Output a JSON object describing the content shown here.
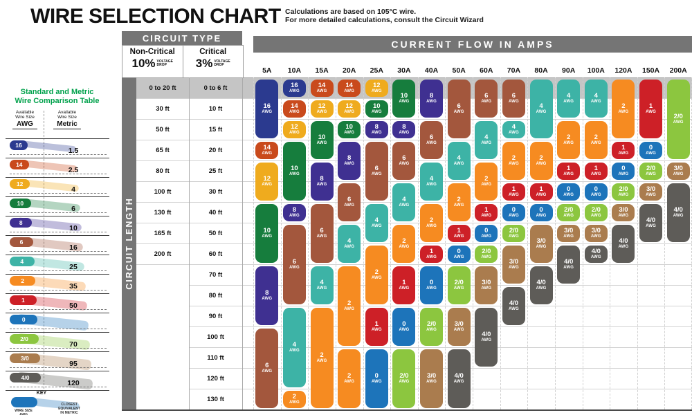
{
  "title": "WIRE SELECTION CHART",
  "note_line1": "Calculations are based on 105°C wire.",
  "note_line2": "For more detailed calculations, consult the Circuit Wizard",
  "headers": {
    "circuit_type": "CIRCUIT TYPE",
    "current_flow": "CURRENT FLOW IN AMPS",
    "circuit_length": "CIRCUIT LENGTH",
    "non_critical": "Non-Critical",
    "non_critical_pct": "10%",
    "critical": "Critical",
    "critical_pct": "3%",
    "voltage": "VOLTAGE",
    "drop": "DROP",
    "awg_suffix": "AWG"
  },
  "amps": [
    "5A",
    "10A",
    "15A",
    "20A",
    "25A",
    "30A",
    "40A",
    "50A",
    "60A",
    "70A",
    "80A",
    "90A",
    "100A",
    "120A",
    "150A",
    "200A"
  ],
  "lengths": {
    "non_critical": [
      "0 to 20 ft",
      "30 ft",
      "50 ft",
      "65 ft",
      "80 ft",
      "100 ft",
      "130 ft",
      "165 ft",
      "200 ft",
      "",
      "",
      "",
      "",
      "",
      "",
      ""
    ],
    "critical": [
      "0 to 6 ft",
      "10 ft",
      "15 ft",
      "20 ft",
      "25 ft",
      "30 ft",
      "40 ft",
      "50 ft",
      "60 ft",
      "70 ft",
      "80 ft",
      "90 ft",
      "100 ft",
      "110 ft",
      "120 ft",
      "130 ft"
    ]
  },
  "wire_colors": {
    "16": "#2b3a8f",
    "14": "#c94a1c",
    "12": "#efab1e",
    "10": "#167d3d",
    "8": "#3f3091",
    "6": "#a3573d",
    "4": "#3db3a6",
    "2": "#f68b21",
    "1": "#cd2027",
    "0": "#1d74ba",
    "2/0": "#8cc63f",
    "3/0": "#aa7c4e",
    "4/0": "#5e5c58"
  },
  "columns": [
    {
      "amp": "5A",
      "pills": [
        {
          "s": "16",
          "r": [
            1,
            3
          ]
        },
        {
          "s": "14",
          "r": [
            4,
            4
          ]
        },
        {
          "s": "12",
          "r": [
            5,
            6
          ]
        },
        {
          "s": "10",
          "r": [
            7,
            9
          ]
        },
        {
          "s": "8",
          "r": [
            10,
            12
          ]
        },
        {
          "s": "6",
          "r": [
            13,
            16
          ]
        }
      ]
    },
    {
      "amp": "10A",
      "pills": [
        {
          "s": "16",
          "r": [
            1,
            1
          ]
        },
        {
          "s": "14",
          "r": [
            2,
            2
          ]
        },
        {
          "s": "12",
          "r": [
            3,
            3
          ]
        },
        {
          "s": "10",
          "r": [
            4,
            6
          ]
        },
        {
          "s": "8",
          "r": [
            7,
            7
          ]
        },
        {
          "s": "6",
          "r": [
            8,
            11
          ]
        },
        {
          "s": "4",
          "r": [
            12,
            15
          ]
        },
        {
          "s": "2",
          "r": [
            16,
            16
          ]
        }
      ]
    },
    {
      "amp": "15A",
      "pills": [
        {
          "s": "14",
          "r": [
            1,
            1
          ]
        },
        {
          "s": "12",
          "r": [
            2,
            2
          ]
        },
        {
          "s": "10",
          "r": [
            3,
            4
          ]
        },
        {
          "s": "8",
          "r": [
            5,
            6
          ]
        },
        {
          "s": "6",
          "r": [
            7,
            9
          ]
        },
        {
          "s": "4",
          "r": [
            10,
            11
          ]
        },
        {
          "s": "2",
          "r": [
            12,
            16
          ]
        }
      ]
    },
    {
      "amp": "20A",
      "pills": [
        {
          "s": "14",
          "r": [
            1,
            1
          ]
        },
        {
          "s": "12",
          "r": [
            2,
            2
          ]
        },
        {
          "s": "10",
          "r": [
            3,
            3
          ]
        },
        {
          "s": "8",
          "r": [
            4,
            5
          ]
        },
        {
          "s": "6",
          "r": [
            6,
            7
          ]
        },
        {
          "s": "4",
          "r": [
            8,
            9
          ]
        },
        {
          "s": "2",
          "r": [
            10,
            13
          ]
        },
        {
          "s": "2",
          "r": [
            14,
            16
          ]
        }
      ]
    },
    {
      "amp": "25A",
      "pills": [
        {
          "s": "12",
          "r": [
            1,
            1
          ]
        },
        {
          "s": "10",
          "r": [
            2,
            2
          ]
        },
        {
          "s": "8",
          "r": [
            3,
            3
          ]
        },
        {
          "s": "6",
          "r": [
            4,
            6
          ]
        },
        {
          "s": "4",
          "r": [
            7,
            8
          ]
        },
        {
          "s": "2",
          "r": [
            9,
            11
          ]
        },
        {
          "s": "1",
          "r": [
            12,
            13
          ]
        },
        {
          "s": "0",
          "r": [
            14,
            16
          ]
        }
      ]
    },
    {
      "amp": "30A",
      "pills": [
        {
          "s": "10",
          "r": [
            1,
            2
          ]
        },
        {
          "s": "8",
          "r": [
            3,
            3
          ]
        },
        {
          "s": "6",
          "r": [
            4,
            5
          ]
        },
        {
          "s": "4",
          "r": [
            6,
            7
          ]
        },
        {
          "s": "2",
          "r": [
            8,
            9
          ]
        },
        {
          "s": "1",
          "r": [
            10,
            11
          ]
        },
        {
          "s": "0",
          "r": [
            12,
            13
          ]
        },
        {
          "s": "2/0",
          "r": [
            14,
            16
          ]
        }
      ]
    },
    {
      "amp": "40A",
      "pills": [
        {
          "s": "8",
          "r": [
            1,
            2
          ]
        },
        {
          "s": "6",
          "r": [
            3,
            4
          ]
        },
        {
          "s": "4",
          "r": [
            5,
            6
          ]
        },
        {
          "s": "2",
          "r": [
            7,
            8
          ]
        },
        {
          "s": "1",
          "r": [
            9,
            9
          ]
        },
        {
          "s": "0",
          "r": [
            10,
            11
          ]
        },
        {
          "s": "2/0",
          "r": [
            12,
            13
          ]
        },
        {
          "s": "3/0",
          "r": [
            14,
            16
          ]
        }
      ]
    },
    {
      "amp": "50A",
      "pills": [
        {
          "s": "6",
          "r": [
            1,
            3
          ]
        },
        {
          "s": "4",
          "r": [
            4,
            5
          ]
        },
        {
          "s": "2",
          "r": [
            6,
            7
          ]
        },
        {
          "s": "1",
          "r": [
            8,
            8
          ]
        },
        {
          "s": "0",
          "r": [
            9,
            9
          ]
        },
        {
          "s": "2/0",
          "r": [
            10,
            11
          ]
        },
        {
          "s": "3/0",
          "r": [
            12,
            13
          ]
        },
        {
          "s": "4/0",
          "r": [
            14,
            16
          ]
        }
      ]
    },
    {
      "amp": "60A",
      "pills": [
        {
          "s": "6",
          "r": [
            1,
            2
          ]
        },
        {
          "s": "4",
          "r": [
            3,
            4
          ]
        },
        {
          "s": "2",
          "r": [
            5,
            6
          ]
        },
        {
          "s": "1",
          "r": [
            7,
            7
          ]
        },
        {
          "s": "0",
          "r": [
            8,
            8
          ]
        },
        {
          "s": "2/0",
          "r": [
            9,
            9
          ]
        },
        {
          "s": "3/0",
          "r": [
            10,
            11
          ]
        },
        {
          "s": "4/0",
          "r": [
            12,
            14
          ]
        }
      ]
    },
    {
      "amp": "70A",
      "pills": [
        {
          "s": "6",
          "r": [
            1,
            2
          ]
        },
        {
          "s": "4",
          "r": [
            3,
            3
          ]
        },
        {
          "s": "2",
          "r": [
            4,
            5
          ]
        },
        {
          "s": "1",
          "r": [
            6,
            6
          ]
        },
        {
          "s": "0",
          "r": [
            7,
            7
          ]
        },
        {
          "s": "2/0",
          "r": [
            8,
            8
          ]
        },
        {
          "s": "3/0",
          "r": [
            9,
            10
          ]
        },
        {
          "s": "4/0",
          "r": [
            11,
            12
          ]
        }
      ]
    },
    {
      "amp": "80A",
      "pills": [
        {
          "s": "4",
          "r": [
            1,
            3
          ]
        },
        {
          "s": "2",
          "r": [
            4,
            5
          ]
        },
        {
          "s": "1",
          "r": [
            6,
            6
          ]
        },
        {
          "s": "0",
          "r": [
            7,
            7
          ]
        },
        {
          "s": "3/0",
          "r": [
            8,
            9
          ]
        },
        {
          "s": "4/0",
          "r": [
            10,
            11
          ]
        }
      ]
    },
    {
      "amp": "90A",
      "pills": [
        {
          "s": "4",
          "r": [
            1,
            2
          ]
        },
        {
          "s": "2",
          "r": [
            3,
            4
          ]
        },
        {
          "s": "1",
          "r": [
            5,
            5
          ]
        },
        {
          "s": "0",
          "r": [
            6,
            6
          ]
        },
        {
          "s": "2/0",
          "r": [
            7,
            7
          ]
        },
        {
          "s": "3/0",
          "r": [
            8,
            8
          ]
        },
        {
          "s": "4/0",
          "r": [
            9,
            10
          ]
        }
      ]
    },
    {
      "amp": "100A",
      "pills": [
        {
          "s": "4",
          "r": [
            1,
            2
          ]
        },
        {
          "s": "2",
          "r": [
            3,
            4
          ]
        },
        {
          "s": "1",
          "r": [
            5,
            5
          ]
        },
        {
          "s": "0",
          "r": [
            6,
            6
          ]
        },
        {
          "s": "2/0",
          "r": [
            7,
            7
          ]
        },
        {
          "s": "3/0",
          "r": [
            8,
            8
          ]
        },
        {
          "s": "4/0",
          "r": [
            9,
            9
          ]
        }
      ]
    },
    {
      "amp": "120A",
      "pills": [
        {
          "s": "2",
          "r": [
            1,
            3
          ]
        },
        {
          "s": "1",
          "r": [
            4,
            4
          ]
        },
        {
          "s": "0",
          "r": [
            5,
            5
          ]
        },
        {
          "s": "2/0",
          "r": [
            6,
            6
          ]
        },
        {
          "s": "3/0",
          "r": [
            7,
            7
          ]
        },
        {
          "s": "4/0",
          "r": [
            8,
            9
          ]
        }
      ]
    },
    {
      "amp": "150A",
      "pills": [
        {
          "s": "1",
          "r": [
            1,
            3
          ]
        },
        {
          "s": "0",
          "r": [
            4,
            4
          ]
        },
        {
          "s": "2/0",
          "r": [
            5,
            5
          ]
        },
        {
          "s": "3/0",
          "r": [
            6,
            6
          ]
        },
        {
          "s": "4/0",
          "r": [
            7,
            8
          ]
        }
      ]
    },
    {
      "amp": "200A",
      "pills": [
        {
          "s": "2/0",
          "r": [
            1,
            4
          ]
        },
        {
          "s": "3/0",
          "r": [
            5,
            5
          ]
        },
        {
          "s": "4/0",
          "r": [
            6,
            8
          ]
        }
      ]
    }
  ],
  "sidebar": {
    "title_line1": "Standard and Metric",
    "title_line2": "Wire Comparison Table",
    "col1_header": {
      "l1": "Available",
      "l2": "Wire Size",
      "l3": "AWG"
    },
    "col2_header": {
      "l1": "Available",
      "l2": "Wire Size",
      "l3": "Metric"
    },
    "rows": [
      {
        "awg": "16",
        "metric": "1.5"
      },
      {
        "awg": "14",
        "metric": "2.5"
      },
      {
        "awg": "12",
        "metric": "4"
      },
      {
        "awg": "10",
        "metric": "6"
      },
      {
        "awg": "8",
        "metric": "10"
      },
      {
        "awg": "6",
        "metric": "16"
      },
      {
        "awg": "4",
        "metric": "25"
      },
      {
        "awg": "2",
        "metric": "35"
      },
      {
        "awg": "1",
        "metric": "50"
      },
      {
        "awg": "0",
        "metric": ""
      },
      {
        "awg": "2/0",
        "metric": "70"
      },
      {
        "awg": "3/0",
        "metric": "95"
      },
      {
        "awg": "4/0",
        "metric": "120"
      }
    ],
    "key": {
      "label": "KEY",
      "left_l1": "WIRE SIZE",
      "left_l2": "AWG",
      "right_l1": "CLOSEST",
      "right_l2": "EQUIVALENT",
      "right_l3": "IN METRIC"
    }
  },
  "chart_data": {
    "type": "table",
    "title": "Wire Selection Chart (105°C wire)",
    "x_axis": "Current Flow in Amps",
    "y_axis": "Circuit Length (Non-Critical 10% voltage drop / Critical 3% voltage drop)",
    "columns": [
      "5A",
      "10A",
      "15A",
      "20A",
      "25A",
      "30A",
      "40A",
      "50A",
      "60A",
      "70A",
      "80A",
      "90A",
      "100A",
      "120A",
      "150A",
      "200A"
    ],
    "row_labels_non_critical": [
      "0 to 20 ft",
      "30 ft",
      "50 ft",
      "65 ft",
      "80 ft",
      "100 ft",
      "130 ft",
      "165 ft",
      "200 ft",
      "",
      "",
      "",
      "",
      "",
      "",
      ""
    ],
    "row_labels_critical": [
      "0 to 6 ft",
      "10 ft",
      "15 ft",
      "20 ft",
      "25 ft",
      "30 ft",
      "40 ft",
      "50 ft",
      "60 ft",
      "70 ft",
      "80 ft",
      "90 ft",
      "100 ft",
      "110 ft",
      "120 ft",
      "130 ft"
    ],
    "cells_awg_by_column": {
      "5A": [
        "16",
        "16",
        "16",
        "14",
        "12",
        "12",
        "10",
        "10",
        "10",
        "8",
        "8",
        "8",
        "6",
        "6",
        "6",
        "6"
      ],
      "10A": [
        "16",
        "14",
        "12",
        "10",
        "10",
        "10",
        "8",
        "6",
        "6",
        "6",
        "6",
        "4",
        "4",
        "4",
        "4",
        "2"
      ],
      "15A": [
        "14",
        "12",
        "10",
        "10",
        "8",
        "8",
        "6",
        "6",
        "6",
        "4",
        "4",
        "2",
        "2",
        "2",
        "2",
        "2"
      ],
      "20A": [
        "14",
        "12",
        "10",
        "8",
        "8",
        "6",
        "6",
        "4",
        "4",
        "2",
        "2",
        "2",
        "2",
        "2",
        "2",
        "2"
      ],
      "25A": [
        "12",
        "10",
        "8",
        "6",
        "6",
        "6",
        "4",
        "4",
        "2",
        "2",
        "2",
        "1",
        "1",
        "0",
        "0",
        "0"
      ],
      "30A": [
        "10",
        "10",
        "8",
        "6",
        "6",
        "4",
        "4",
        "2",
        "2",
        "1",
        "1",
        "0",
        "0",
        "2/0",
        "2/0",
        "2/0"
      ],
      "40A": [
        "8",
        "8",
        "6",
        "6",
        "4",
        "4",
        "2",
        "2",
        "1",
        "0",
        "0",
        "2/0",
        "2/0",
        "3/0",
        "3/0",
        "3/0"
      ],
      "50A": [
        "6",
        "6",
        "6",
        "4",
        "4",
        "2",
        "2",
        "1",
        "0",
        "2/0",
        "2/0",
        "3/0",
        "3/0",
        "4/0",
        "4/0",
        "4/0"
      ],
      "60A": [
        "6",
        "6",
        "4",
        "4",
        "2",
        "2",
        "1",
        "0",
        "2/0",
        "3/0",
        "3/0",
        "4/0",
        "4/0",
        "4/0",
        "",
        ""
      ],
      "70A": [
        "6",
        "6",
        "4",
        "2",
        "2",
        "1",
        "0",
        "2/0",
        "3/0",
        "3/0",
        "4/0",
        "4/0",
        "",
        "",
        "",
        ""
      ],
      "80A": [
        "4",
        "4",
        "4",
        "2",
        "2",
        "1",
        "0",
        "3/0",
        "3/0",
        "4/0",
        "4/0",
        "",
        "",
        "",
        "",
        ""
      ],
      "90A": [
        "4",
        "4",
        "2",
        "2",
        "1",
        "0",
        "2/0",
        "3/0",
        "4/0",
        "4/0",
        "",
        "",
        "",
        "",
        "",
        ""
      ],
      "100A": [
        "4",
        "4",
        "2",
        "2",
        "1",
        "0",
        "2/0",
        "3/0",
        "4/0",
        "",
        "",
        "",
        "",
        "",
        "",
        ""
      ],
      "120A": [
        "2",
        "2",
        "2",
        "1",
        "0",
        "2/0",
        "3/0",
        "4/0",
        "4/0",
        "",
        "",
        "",
        "",
        "",
        "",
        ""
      ],
      "150A": [
        "1",
        "1",
        "1",
        "0",
        "2/0",
        "3/0",
        "4/0",
        "4/0",
        "",
        "",
        "",
        "",
        "",
        "",
        "",
        ""
      ],
      "200A": [
        "2/0",
        "2/0",
        "2/0",
        "2/0",
        "3/0",
        "4/0",
        "4/0",
        "4/0",
        "",
        "",
        "",
        "",
        "",
        "",
        "",
        ""
      ]
    }
  }
}
